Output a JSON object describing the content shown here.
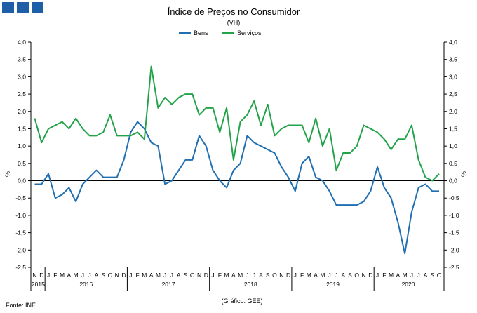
{
  "chart_data": {
    "type": "line",
    "title": "Índice de Preços no Consumidor",
    "subtitle": "(VH)",
    "ylabel_left": "%",
    "ylabel_right": "%",
    "ylim": [
      -2.5,
      4.0
    ],
    "yticks": [
      "4,0",
      "3,5",
      "3,0",
      "2,5",
      "2,0",
      "1,5",
      "1,0",
      "0,5",
      "0,0",
      "-0,5",
      "-1,0",
      "-1,5",
      "-2,0",
      "-2,5"
    ],
    "month_labels": [
      "N",
      "D",
      "J",
      "F",
      "M",
      "A",
      "M",
      "J",
      "J",
      "A",
      "S",
      "O",
      "N",
      "D",
      "J",
      "F",
      "M",
      "A",
      "M",
      "J",
      "J",
      "A",
      "S",
      "O",
      "N",
      "D",
      "J",
      "F",
      "M",
      "A",
      "M",
      "J",
      "J",
      "A",
      "S",
      "O",
      "N",
      "D",
      "J",
      "F",
      "M",
      "A",
      "M",
      "J",
      "J",
      "A",
      "S",
      "O",
      "N",
      "D",
      "J",
      "F",
      "M",
      "A",
      "M",
      "J",
      "J",
      "A",
      "S",
      "O"
    ],
    "year_labels": [
      "2015",
      "2016",
      "2017",
      "2018",
      "2019",
      "2020"
    ],
    "legend": {
      "position": "top-center"
    },
    "grid": false,
    "series": [
      {
        "name": "Bens",
        "color": "#1f6fb2",
        "values": [
          -0.1,
          -0.1,
          0.2,
          -0.5,
          -0.4,
          -0.2,
          -0.6,
          -0.1,
          0.1,
          0.3,
          0.1,
          0.1,
          0.1,
          0.6,
          1.4,
          1.7,
          1.5,
          1.1,
          1.0,
          -0.1,
          0.0,
          0.3,
          0.6,
          0.6,
          1.3,
          1.0,
          0.3,
          0.0,
          -0.2,
          0.3,
          0.5,
          1.3,
          1.1,
          1.0,
          0.9,
          0.8,
          0.4,
          0.1,
          -0.3,
          0.5,
          0.7,
          0.1,
          0.0,
          -0.3,
          -0.7,
          -0.7,
          -0.7,
          -0.7,
          -0.6,
          -0.3,
          0.4,
          -0.2,
          -0.5,
          -1.2,
          -2.1,
          -0.9,
          -0.2,
          -0.1,
          -0.3,
          -0.3
        ]
      },
      {
        "name": "Serviços",
        "color": "#22a34a",
        "values": [
          1.8,
          1.1,
          1.5,
          1.6,
          1.7,
          1.5,
          1.8,
          1.5,
          1.3,
          1.3,
          1.4,
          1.9,
          1.3,
          1.3,
          1.3,
          1.4,
          1.2,
          3.3,
          2.1,
          2.4,
          2.2,
          2.4,
          2.5,
          2.5,
          1.9,
          2.1,
          2.1,
          1.4,
          2.1,
          0.6,
          1.7,
          1.9,
          2.3,
          1.6,
          2.2,
          1.3,
          1.5,
          1.6,
          1.6,
          1.6,
          1.1,
          1.8,
          1.0,
          1.5,
          0.3,
          0.8,
          0.8,
          1.0,
          1.6,
          1.5,
          1.4,
          1.2,
          0.9,
          1.2,
          1.2,
          1.6,
          0.6,
          0.1,
          0.0,
          0.2
        ]
      }
    ]
  },
  "footer": {
    "source": "Fonte: INE",
    "credit": "(Gráfico: GEE)"
  }
}
